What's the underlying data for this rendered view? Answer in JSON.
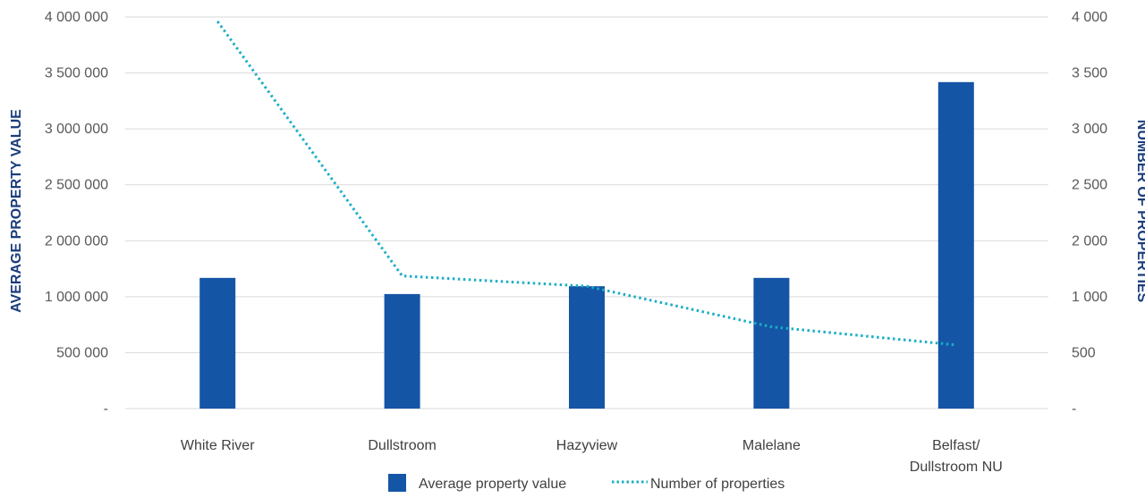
{
  "chart_data": {
    "type": "bar",
    "categories": [
      "White River",
      "Dullstroom",
      "Hazyview",
      "Malelane",
      "Belfast/\nDullstroom NU"
    ],
    "series": [
      {
        "name": "Average property value",
        "type": "bar",
        "axis": "left",
        "color": "#1555a6",
        "values": [
          1335000,
          1170000,
          1250000,
          1335000,
          3335000
        ]
      },
      {
        "name": "Number of properties",
        "type": "line",
        "style": "dotted",
        "axis": "right",
        "color": "#1aaec6",
        "values": [
          3955,
          1355,
          1250,
          835,
          650
        ]
      }
    ],
    "ylabel": "AVERAGE PROPERTY VALUE",
    "y2label": "NUMBER OF PROPERTIES",
    "ylim": [
      0,
      4000000
    ],
    "y2lim": [
      0,
      4000
    ],
    "yticks": [
      "-",
      "500 000",
      "1 000 000",
      "2 000 000",
      "2 500 000",
      "3 000 000",
      "3 500 000",
      "4 000 000"
    ],
    "y2ticks": [
      "-",
      "500",
      "1 000",
      "2 000",
      "2 500",
      "3 000",
      "3 500",
      "4 000"
    ],
    "grid": true,
    "legend": "bottom"
  }
}
